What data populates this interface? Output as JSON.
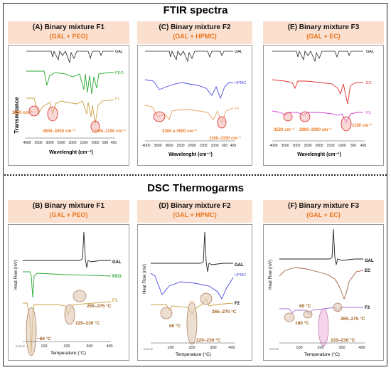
{
  "ftir_title": "FTIR spectra",
  "dsc_title": "DSC Thermogarms",
  "chart_data": [
    {
      "type": "line",
      "panel": "A",
      "title": "(A) Binary mixture F1",
      "subtitle": "(GAL + PEO)",
      "xlabel": "Wavelenght (cm⁻¹)",
      "ylabel": "Transmitance",
      "xlim": [
        4000,
        400
      ],
      "xticks": [
        "4000",
        "3500",
        "3000",
        "2500",
        "2000",
        "1500",
        "1000",
        "500",
        "400"
      ],
      "series": [
        {
          "name": "GAL",
          "color": "#222222"
        },
        {
          "name": "PEO",
          "color": "#2aa832"
        },
        {
          "name": "F1",
          "color": "#c8a040"
        }
      ],
      "annotations": [
        "3250 cm⁻¹",
        "2800–3000 cm⁻¹",
        "1100–1150 cm⁻¹"
      ]
    },
    {
      "type": "line",
      "panel": "C",
      "title": "(C) Binary mixture F2",
      "subtitle": "(GAL + HPMC)",
      "xlabel": "Wavelenght (cm⁻¹)",
      "ylabel": "",
      "xlim": [
        4000,
        400
      ],
      "xticks": [
        "4000",
        "3500",
        "3000",
        "2500",
        "2000",
        "1500",
        "1000",
        "500",
        "400"
      ],
      "series": [
        {
          "name": "GAL",
          "color": "#222222"
        },
        {
          "name": "HPMC",
          "color": "#4a4ae0"
        },
        {
          "name": "F2",
          "color": "#e8a060"
        }
      ],
      "annotations": [
        "3300 a 3500 cm⁻¹",
        "1100–1150 cm⁻¹"
      ]
    },
    {
      "type": "line",
      "panel": "E",
      "title": "(E) Binary mixture F3",
      "subtitle": "(GAL + EC)",
      "xlabel": "Wavelenght (cm⁻¹)",
      "ylabel": "",
      "xlim": [
        4000,
        400
      ],
      "xticks": [
        "4000",
        "3500",
        "3000",
        "2500",
        "2000",
        "1500",
        "1000",
        "500",
        "400"
      ],
      "series": [
        {
          "name": "GAL",
          "color": "#222222"
        },
        {
          "name": "EC",
          "color": "#e03030"
        },
        {
          "name": "F3",
          "color": "#d040d0"
        }
      ],
      "annotations": [
        "3520 cm⁻¹",
        "2900–3000 cm⁻¹",
        "1150 cm⁻¹"
      ]
    },
    {
      "type": "line",
      "panel": "B",
      "title": "(B) Binary mixture F1",
      "subtitle": "(GAL + PEO)",
      "xlabel": "Temperature (°C)",
      "ylabel": "Heat Flow (mV)",
      "xlim": [
        0,
        400
      ],
      "xticks": [
        "100",
        "200",
        "300",
        "400"
      ],
      "series": [
        {
          "name": "GAL",
          "color": "#222222"
        },
        {
          "name": "PEO",
          "color": "#2aa832"
        },
        {
          "name": "F1",
          "color": "#c8a040"
        }
      ],
      "annotations": [
        "~66 °C",
        "220–230 °C",
        "265–275 °C"
      ],
      "footnote": "EXO UP"
    },
    {
      "type": "line",
      "panel": "D",
      "title": "(D) Binary mixture F2",
      "subtitle": "(GAL + HPMC)",
      "xlabel": "Temperature (°C)",
      "ylabel": "Heat Flow (mV)",
      "xlim": [
        0,
        400
      ],
      "xticks": [
        "100",
        "200",
        "300",
        "400"
      ],
      "series": [
        {
          "name": "GAL",
          "color": "#222222"
        },
        {
          "name": "HPMC",
          "color": "#4a4ae0"
        },
        {
          "name": "F2",
          "color": "#c8a040"
        }
      ],
      "annotations": [
        "60 °C",
        "220–230 °C",
        "265–275 °C"
      ],
      "footnote": "EXO UP"
    },
    {
      "type": "line",
      "panel": "F",
      "title": "(F) Binary mixture F3",
      "subtitle": "(GAL + EC)",
      "xlabel": "Temperature (°C)",
      "ylabel": "Heat Flow (mV)",
      "xlim": [
        0,
        400
      ],
      "xticks": [
        "100",
        "200",
        "300",
        "400"
      ],
      "series": [
        {
          "name": "GAL",
          "color": "#222222"
        },
        {
          "name": "EC",
          "color": "#a06040"
        },
        {
          "name": "F3",
          "color": "#a070d0"
        }
      ],
      "annotations": [
        "60 °C",
        "180 °C",
        "265–275 °C",
        "220–230 °C"
      ],
      "footnote": "EXO UP"
    }
  ]
}
